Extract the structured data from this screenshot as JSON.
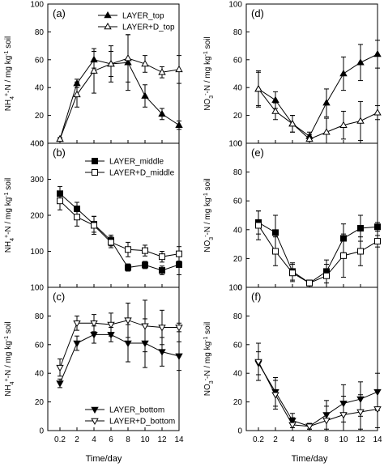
{
  "x_label": "Time/day",
  "chart_data": [
    {
      "id": "a",
      "panel_label": "(a)",
      "type": "line",
      "ylabel_html": "NH<tspan baseline-shift=\"sub\" font-size=\"7\">4</tspan><tspan baseline-shift=\"super\" font-size=\"7\">+</tspan>-N / mg kg<tspan baseline-shift=\"super\" font-size=\"7\">-1</tspan> soil",
      "ylim": [
        0,
        100
      ],
      "yticks": [
        0,
        20,
        40,
        60,
        80,
        100
      ],
      "ytick_labels": [
        "0",
        "20",
        "40",
        "60",
        "80",
        "100"
      ],
      "x": [
        0.2,
        2,
        4,
        6,
        8,
        10,
        12,
        14
      ],
      "legend": "top-right",
      "series": [
        {
          "name": "LAYER_top",
          "marker": "triangle-up",
          "filled": true,
          "values": [
            3,
            43,
            60,
            57,
            58,
            34,
            21,
            13
          ],
          "errors": [
            1,
            3,
            6,
            9,
            20,
            8,
            4,
            3
          ]
        },
        {
          "name": "LAYER+D_top",
          "marker": "triangle-up",
          "filled": false,
          "values": [
            3,
            35,
            52,
            57,
            61,
            57,
            51,
            53
          ],
          "errors": [
            1,
            9,
            16,
            13,
            17,
            6,
            4,
            10
          ]
        }
      ]
    },
    {
      "id": "b",
      "panel_label": "(b)",
      "type": "line",
      "ylabel_html": "NH<tspan baseline-shift=\"sub\" font-size=\"7\">4</tspan><tspan baseline-shift=\"super\" font-size=\"7\">+</tspan>-N / mg kg<tspan baseline-shift=\"super\" font-size=\"7\">-1</tspan> soil",
      "ylim": [
        0,
        400
      ],
      "yticks": [
        0,
        100,
        200,
        300,
        400
      ],
      "ytick_labels": [
        "",
        "100",
        "200",
        "300",
        "400"
      ],
      "x": [
        0.2,
        2,
        4,
        6,
        8,
        10,
        12,
        14
      ],
      "legend": "top-center",
      "series": [
        {
          "name": "LAYER_middle",
          "marker": "square",
          "filled": true,
          "values": [
            260,
            218,
            175,
            130,
            55,
            62,
            47,
            63
          ],
          "errors": [
            20,
            18,
            22,
            15,
            10,
            10,
            12,
            28
          ]
        },
        {
          "name": "LAYER+D_middle",
          "marker": "square",
          "filled": false,
          "values": [
            240,
            195,
            172,
            125,
            105,
            102,
            85,
            93
          ],
          "errors": [
            25,
            25,
            25,
            15,
            20,
            15,
            15,
            20
          ]
        }
      ]
    },
    {
      "id": "c",
      "panel_label": "(c)",
      "type": "line",
      "ylabel_html": "NH<tspan baseline-shift=\"sub\" font-size=\"7\">4</tspan><tspan baseline-shift=\"super\" font-size=\"7\">+</tspan>-N / mg kg<tspan baseline-shift=\"super\" font-size=\"7\">-1</tspan> soil",
      "ylim": [
        0,
        100
      ],
      "yticks": [
        0,
        20,
        40,
        60,
        80,
        100
      ],
      "ytick_labels": [
        "0",
        "20",
        "40",
        "60",
        "80",
        "100"
      ],
      "x": [
        0.2,
        2,
        4,
        6,
        8,
        10,
        12,
        14
      ],
      "legend": "bottom-right",
      "series": [
        {
          "name": "LAYER_bottom",
          "marker": "triangle-down",
          "filled": true,
          "values": [
            33,
            61,
            67,
            67,
            61,
            61,
            55,
            52
          ],
          "errors": [
            3,
            5,
            6,
            5,
            13,
            17,
            10,
            10
          ]
        },
        {
          "name": "LAYER+D_bottom",
          "marker": "triangle-down",
          "filled": false,
          "values": [
            44,
            75,
            75,
            74,
            77,
            73,
            72,
            72
          ],
          "errors": [
            6,
            5,
            6,
            8,
            12,
            18,
            12,
            3
          ]
        }
      ]
    },
    {
      "id": "d",
      "panel_label": "(d)",
      "type": "line",
      "ylabel_html": "NO<tspan baseline-shift=\"sub\" font-size=\"7\">3</tspan><tspan baseline-shift=\"super\" font-size=\"7\">-</tspan>-N / mg kg<tspan baseline-shift=\"super\" font-size=\"7\">-1</tspan> soil",
      "ylim": [
        0,
        100
      ],
      "yticks": [
        0,
        20,
        40,
        60,
        80,
        100
      ],
      "ytick_labels": [
        "0",
        "20",
        "40",
        "60",
        "80",
        "100"
      ],
      "x": [
        0.2,
        2,
        4,
        6,
        8,
        10,
        12,
        14
      ],
      "legend": "none",
      "series": [
        {
          "name": "LAYER_top",
          "marker": "triangle-up",
          "filled": true,
          "values": [
            39,
            31,
            14,
            5,
            29,
            50,
            58,
            64
          ],
          "errors": [
            13,
            6,
            6,
            3,
            10,
            12,
            13,
            10
          ]
        },
        {
          "name": "LAYER+D_top",
          "marker": "triangle-up",
          "filled": false,
          "values": [
            39,
            23,
            14,
            3,
            8,
            13,
            16,
            22
          ],
          "errors": [
            12,
            6,
            6,
            3,
            10,
            10,
            14,
            5
          ]
        }
      ]
    },
    {
      "id": "e",
      "panel_label": "(e)",
      "type": "line",
      "ylabel_html": "NO<tspan baseline-shift=\"sub\" font-size=\"7\">3</tspan><tspan baseline-shift=\"super\" font-size=\"7\">-</tspan>-N / mg kg<tspan baseline-shift=\"super\" font-size=\"7\">-1</tspan> soil",
      "ylim": [
        0,
        100
      ],
      "yticks": [
        0,
        20,
        40,
        60,
        80,
        100
      ],
      "ytick_labels": [
        "0",
        "20",
        "40",
        "60",
        "80",
        "100"
      ],
      "x": [
        0.2,
        2,
        4,
        6,
        8,
        10,
        12,
        14
      ],
      "legend": "none",
      "series": [
        {
          "name": "LAYER_middle",
          "marker": "square",
          "filled": true,
          "values": [
            45,
            38,
            11,
            3,
            11,
            34,
            41,
            42
          ],
          "errors": [
            8,
            12,
            6,
            2,
            8,
            10,
            9,
            3
          ]
        },
        {
          "name": "LAYER+D_middle",
          "marker": "square",
          "filled": false,
          "values": [
            43,
            25,
            10,
            3,
            8,
            22,
            25,
            32
          ],
          "errors": [
            10,
            10,
            6,
            2,
            8,
            15,
            10,
            4
          ]
        }
      ]
    },
    {
      "id": "f",
      "panel_label": "(f)",
      "type": "line",
      "ylabel_html": "NO<tspan baseline-shift=\"sub\" font-size=\"7\">3</tspan><tspan baseline-shift=\"super\" font-size=\"7\">-</tspan>-N / mg kg<tspan baseline-shift=\"super\" font-size=\"7\">-1</tspan> soil",
      "ylim": [
        0,
        100
      ],
      "yticks": [
        0,
        20,
        40,
        60,
        80,
        100
      ],
      "ytick_labels": [
        "0",
        "20",
        "40",
        "60",
        "80",
        "100"
      ],
      "x": [
        0.2,
        2,
        4,
        6,
        8,
        10,
        12,
        14
      ],
      "xtick_labels": [
        "0.2",
        "2",
        "4",
        "6",
        "8",
        "10",
        "12",
        "14"
      ],
      "legend": "none",
      "series": [
        {
          "name": "LAYER_bottom",
          "marker": "triangle-down",
          "filled": true,
          "values": [
            47,
            27,
            7,
            3,
            11,
            19,
            22,
            27
          ],
          "errors": [
            8,
            10,
            5,
            2,
            10,
            13,
            12,
            13
          ]
        },
        {
          "name": "LAYER+D_bottom",
          "marker": "triangle-down",
          "filled": false,
          "values": [
            48,
            25,
            4,
            3,
            7,
            11,
            13,
            15
          ],
          "errors": [
            13,
            10,
            5,
            2,
            10,
            13,
            12,
            13
          ]
        }
      ]
    }
  ]
}
